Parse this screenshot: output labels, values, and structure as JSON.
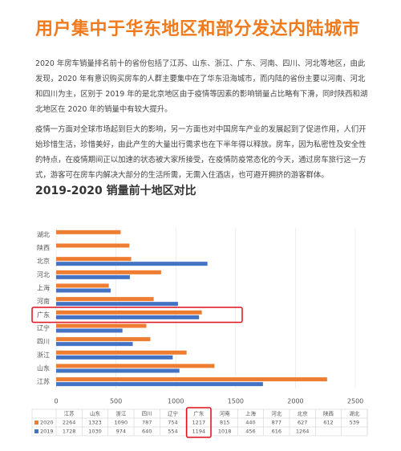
{
  "document": {
    "title": "用户集中于华东地区和部分发达内陆城市",
    "paragraphs": [
      "2020 年房车销量排名前十的省份包括了江苏、山东、浙江、广东、河南、四川、河北等地区，由此发现，2020 年有意识购买房车的人群主要集中在了华东沿海城市，而内陆的省份主要以河南、河北和四川为主，区别于 2019 年的是北京地区由于疫情等因素的影响销量占比略有下滑，同时陕西和湖北地区在 2020 年的销量中有较大提升。",
      "疫情一方面对全球市场起到巨大的影响，另一方面也对中国房车产业的发展起到了促进作用，人们开始珍惜生活，珍惜美好，由此产生的大量出行需求也在下半年得以释放。房车，因为私密性及安全性的特点，在疫情期间正以加速的状态被大家所接受，在疫情防疫常态化的今天，通过房车旅行这一方式，游客可在房车内解决大部分的生活所需，无需入住酒店，也可避开拥挤的游客群体。"
    ]
  },
  "chart_data": {
    "type": "bar",
    "orientation": "horizontal",
    "title": "2019-2020 销量前十地区对比",
    "categories": [
      "江苏",
      "山东",
      "浙江",
      "四川",
      "辽宁",
      "广东",
      "河南",
      "上海",
      "河北",
      "北京",
      "陕西",
      "湖北"
    ],
    "series": [
      {
        "name": "2020",
        "color": "#ee7d31",
        "values": [
          2264,
          1323,
          1090,
          787,
          754,
          1217,
          815,
          440,
          877,
          627,
          612,
          539
        ]
      },
      {
        "name": "2019",
        "color": "#4472c4",
        "values": [
          1728,
          1030,
          974,
          640,
          554,
          1194,
          1018,
          456,
          616,
          1264,
          null,
          null
        ]
      }
    ],
    "xlim": [
      0,
      2600
    ],
    "xticks": [
      0,
      500,
      1000,
      1500,
      2000,
      2500
    ],
    "grid": true
  }
}
